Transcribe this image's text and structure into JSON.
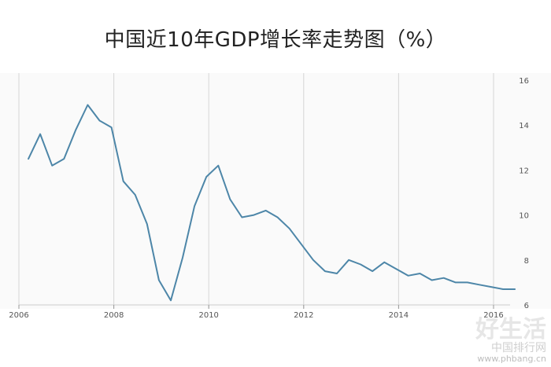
{
  "chart_data": {
    "type": "line",
    "title": "中国近10年GDP增长率走势图（%）",
    "xlabel": "",
    "ylabel": "",
    "xlim": [
      2006,
      2016.75
    ],
    "ylim": [
      6,
      16
    ],
    "x_ticks": [
      "2006",
      "2008",
      "2010",
      "2012",
      "2014",
      "2016"
    ],
    "y_ticks": [
      "6",
      "8",
      "10",
      "12",
      "14",
      "16"
    ],
    "grid": "vertical-major",
    "y_axis_position": "right",
    "line_color": "#4d86a8",
    "series": [
      {
        "x": [
          2006.2,
          2006.45,
          2006.7,
          2006.95,
          2007.2,
          2007.45,
          2007.7,
          2007.95,
          2008.2,
          2008.45,
          2008.7,
          2008.95,
          2009.2,
          2009.45,
          2009.7,
          2009.95,
          2010.2,
          2010.45,
          2010.7,
          2010.95,
          2011.2,
          2011.45,
          2011.7,
          2011.95,
          2012.2,
          2012.45,
          2012.7,
          2012.95,
          2013.2,
          2013.45,
          2013.7,
          2013.95,
          2014.2,
          2014.45,
          2014.7,
          2014.95,
          2015.2,
          2015.45,
          2015.7,
          2015.95,
          2016.2,
          2016.45
        ],
        "values": [
          12.5,
          13.6,
          12.2,
          12.5,
          13.8,
          14.9,
          14.2,
          13.9,
          11.5,
          10.9,
          9.6,
          7.1,
          6.2,
          8.1,
          10.4,
          11.7,
          12.2,
          10.7,
          9.9,
          10.0,
          10.2,
          9.9,
          9.4,
          8.7,
          8.0,
          7.5,
          7.4,
          8.0,
          7.8,
          7.5,
          7.9,
          7.6,
          7.3,
          7.4,
          7.1,
          7.2,
          7.0,
          7.0,
          6.9,
          6.8,
          6.7,
          6.7
        ]
      }
    ]
  },
  "watermark": {
    "mark": "好生活",
    "sub": "中国排行网",
    "url": "www.phbang.cn"
  }
}
